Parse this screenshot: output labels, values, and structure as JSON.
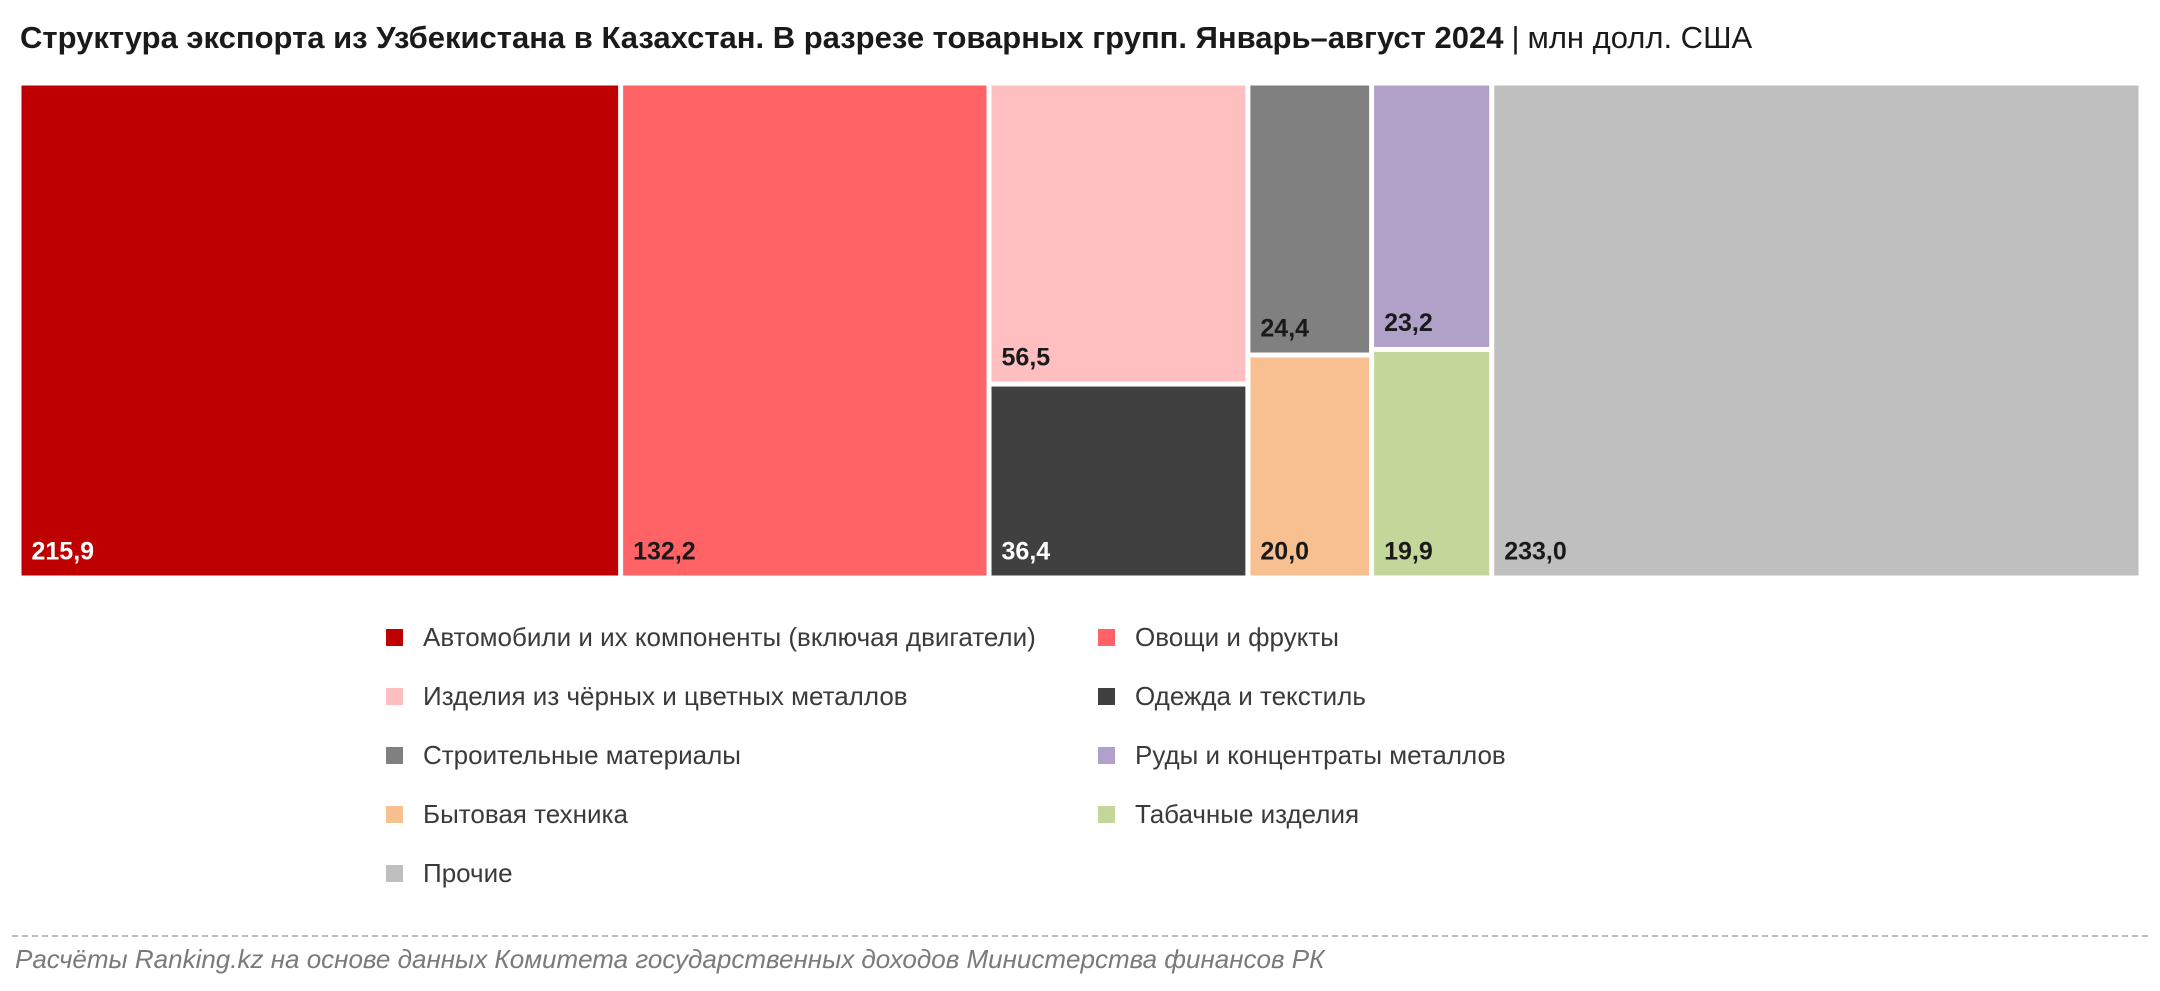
{
  "header": {
    "title": "Структура экспорта из Узбекистана в Казахстан. В разрезе товарных групп. Январь–август 2024",
    "separator": "|",
    "unit": "млн долл. США"
  },
  "chart_data": {
    "type": "treemap",
    "unit": "млн долл. США",
    "series": [
      {
        "name": "Автомобили и их компоненты (включая двигатели)",
        "value": 215.9,
        "label": "215,9",
        "color": "#bf0000",
        "label_color": "#ffffff"
      },
      {
        "name": "Овощи и фрукты",
        "value": 132.2,
        "label": "132,2",
        "color": "#ff6366",
        "label_color": "#1a1a1a"
      },
      {
        "name": "Изделия из чёрных и цветных металлов",
        "value": 56.5,
        "label": "56,5",
        "color": "#ffbfc0",
        "label_color": "#1a1a1a"
      },
      {
        "name": "Одежда и текстиль",
        "value": 36.4,
        "label": "36,4",
        "color": "#404040",
        "label_color": "#ffffff"
      },
      {
        "name": "Строительные материалы",
        "value": 24.4,
        "label": "24,4",
        "color": "#808080",
        "label_color": "#1a1a1a"
      },
      {
        "name": "Руды и концентраты металлов",
        "value": 23.2,
        "label": "23,2",
        "color": "#b1a0c7",
        "label_color": "#1a1a1a"
      },
      {
        "name": "Бытовая техника",
        "value": 20.0,
        "label": "20,0",
        "color": "#f8c091",
        "label_color": "#1a1a1a"
      },
      {
        "name": "Табачные изделия",
        "value": 19.9,
        "label": "19,9",
        "color": "#c4d79b",
        "label_color": "#1a1a1a"
      },
      {
        "name": "Прочие",
        "value": 233.0,
        "label": "233,0",
        "color": "#bfbfbf",
        "label_color": "#1a1a1a"
      }
    ]
  },
  "footer": {
    "source": "Расчёты Ranking.kz на основе данных Комитета государственных доходов Министерства финансов РК"
  }
}
